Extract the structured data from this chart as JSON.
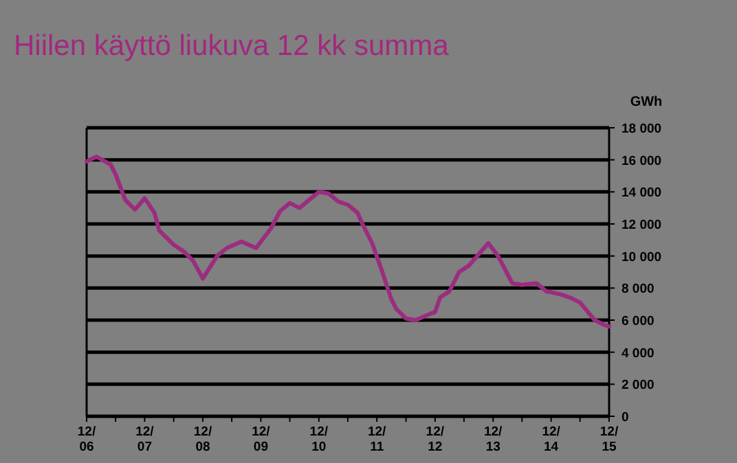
{
  "chart_data": {
    "type": "line",
    "title": "Hiilen käyttö liukuva 12 kk summa",
    "ylabel": "GWh",
    "x": [
      "2006-12",
      "2007-02",
      "2007-05",
      "2007-06",
      "2007-08",
      "2007-10",
      "2007-12",
      "2008-02",
      "2008-03",
      "2008-06",
      "2008-08",
      "2008-10",
      "2008-12",
      "2009-03",
      "2009-05",
      "2009-08",
      "2009-11",
      "2010-02",
      "2010-04",
      "2010-06",
      "2010-08",
      "2010-12",
      "2011-02",
      "2011-04",
      "2011-06",
      "2011-08",
      "2011-09",
      "2011-11",
      "2012-01",
      "2012-03",
      "2012-04",
      "2012-06",
      "2012-08",
      "2012-11",
      "2012-12",
      "2013-01",
      "2013-03",
      "2013-05",
      "2013-07",
      "2013-09",
      "2013-11",
      "2014-01",
      "2014-04",
      "2014-06",
      "2014-09",
      "2014-11",
      "2015-02",
      "2015-04",
      "2015-06",
      "2015-09",
      "2015-11",
      "2015-12"
    ],
    "series": [
      {
        "color": "#9b2d7f",
        "values": [
          15900,
          16200,
          15700,
          15100,
          13500,
          12900,
          13600,
          12700,
          11600,
          10700,
          10300,
          9700,
          8600,
          10000,
          10500,
          10900,
          10500,
          11700,
          12800,
          13300,
          13000,
          14000,
          13900,
          13400,
          13200,
          12700,
          12000,
          10800,
          9100,
          7300,
          6700,
          6100,
          6000,
          6400,
          6500,
          7400,
          7800,
          9000,
          9400,
          10100,
          10800,
          10000,
          8300,
          8200,
          8300,
          7800,
          7600,
          7400,
          7100,
          6000,
          5700,
          5600
        ]
      }
    ],
    "xlim": [
      "2006-12",
      "2015-12"
    ],
    "xticks": [
      {
        "value": "2006-12",
        "label": "12/\n06"
      },
      {
        "value": "2007-06",
        "label": null
      },
      {
        "value": "2007-12",
        "label": "12/\n07"
      },
      {
        "value": "2008-06",
        "label": null
      },
      {
        "value": "2008-12",
        "label": "12/\n08"
      },
      {
        "value": "2009-06",
        "label": null
      },
      {
        "value": "2009-12",
        "label": "12/\n09"
      },
      {
        "value": "2010-06",
        "label": null
      },
      {
        "value": "2010-12",
        "label": "12/\n10"
      },
      {
        "value": "2011-06",
        "label": null
      },
      {
        "value": "2011-12",
        "label": "12/\n11"
      },
      {
        "value": "2012-06",
        "label": null
      },
      {
        "value": "2012-12",
        "label": "12/\n12"
      },
      {
        "value": "2013-06",
        "label": null
      },
      {
        "value": "2013-12",
        "label": "12/\n13"
      },
      {
        "value": "2014-06",
        "label": null
      },
      {
        "value": "2014-12",
        "label": "12/\n14"
      },
      {
        "value": "2015-06",
        "label": null
      },
      {
        "value": "2015-12",
        "label": "12/\n15"
      }
    ],
    "ylim": [
      0,
      18000
    ],
    "yticks": [
      {
        "value": 0,
        "label": "0"
      },
      {
        "value": 2000,
        "label": "2 000"
      },
      {
        "value": 4000,
        "label": "4 000"
      },
      {
        "value": 6000,
        "label": "6 000"
      },
      {
        "value": 8000,
        "label": "8 000"
      },
      {
        "value": 10000,
        "label": "10 000"
      },
      {
        "value": 12000,
        "label": "12 000"
      },
      {
        "value": 14000,
        "label": "14 000"
      },
      {
        "value": 16000,
        "label": "16 000"
      },
      {
        "value": 18000,
        "label": "18 000"
      }
    ],
    "grid": "y",
    "line_style": "solid",
    "marker": "none"
  }
}
